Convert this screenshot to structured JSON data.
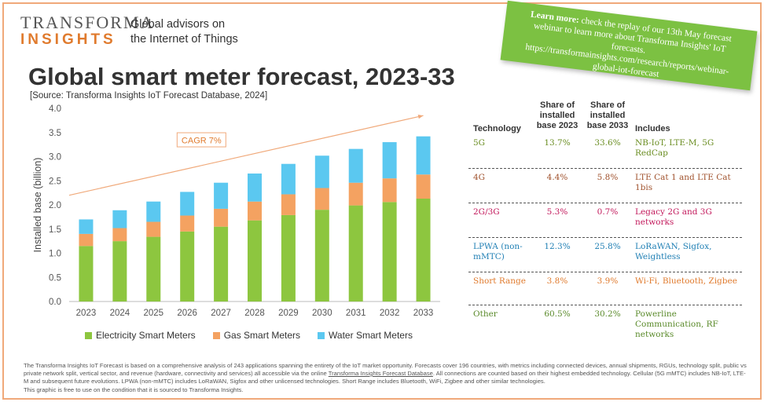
{
  "header": {
    "logo_top": "TRANSFORMA",
    "logo_bottom": "INSIGHTS",
    "tagline_line1": "Global advisors on",
    "tagline_line2": "the Internet of Things",
    "title": "Global smart meter forecast, 2023-33",
    "source": "[Source: Transforma Insights IoT Forecast Database, 2024]"
  },
  "sticker": {
    "bold": "Learn more:",
    "text": " check the replay of our 13th May forecast webinar to learn more about Transforma Insights' IoT forecasts. https://transformainsights.com/research/reports/webinar-global-iot-forecast"
  },
  "colors": {
    "electricity": "#8dc63f",
    "gas": "#f4a261",
    "water": "#5bc8f0",
    "cagr": "#f0a97a",
    "accent": "#e07b2e"
  },
  "chart_data": {
    "type": "bar",
    "stacked": true,
    "title": "",
    "ylabel": "Installed base (billion)",
    "xlabel": "",
    "ylim": [
      0,
      4.0
    ],
    "yticks": [
      "0.0",
      "0.5",
      "1.0",
      "1.5",
      "2.0",
      "2.5",
      "3.0",
      "3.5",
      "4.0"
    ],
    "categories": [
      "2023",
      "2024",
      "2025",
      "2026",
      "2027",
      "2028",
      "2029",
      "2030",
      "2031",
      "2032",
      "2033"
    ],
    "series": [
      {
        "name": "Electricity Smart Meters",
        "values": [
          1.15,
          1.25,
          1.34,
          1.45,
          1.55,
          1.68,
          1.79,
          1.9,
          1.99,
          2.06,
          2.13
        ]
      },
      {
        "name": "Gas Smart Meters",
        "values": [
          0.25,
          0.27,
          0.31,
          0.33,
          0.37,
          0.39,
          0.43,
          0.45,
          0.47,
          0.49,
          0.5
        ]
      },
      {
        "name": "Water Smart Meters",
        "values": [
          0.3,
          0.37,
          0.42,
          0.49,
          0.54,
          0.58,
          0.63,
          0.67,
          0.7,
          0.75,
          0.79
        ]
      }
    ],
    "annotation": {
      "label": "CAGR 7%",
      "trend_start": 2.2,
      "trend_end": 3.85
    },
    "legend_position": "bottom"
  },
  "table": {
    "headers": {
      "technology": "Technology",
      "share2023": "Share of installed base 2023",
      "share2033": "Share of installed base 2033",
      "includes": "Includes"
    },
    "rows": [
      {
        "tech": "5G",
        "s23": "13.7%",
        "s33": "33.6%",
        "includes": "NB-IoT, LTE-M, 5G RedCap",
        "color": "#6b8e23"
      },
      {
        "tech": "4G",
        "s23": "4.4%",
        "s33": "5.8%",
        "includes": "LTE Cat 1 and LTE Cat 1bis",
        "color": "#a0522d"
      },
      {
        "tech": "2G/3G",
        "s23": "5.3%",
        "s33": "0.7%",
        "includes": "Legacy 2G and 3G networks",
        "color": "#c2185b"
      },
      {
        "tech": "LPWA (non-mMTC)",
        "s23": "12.3%",
        "s33": "25.8%",
        "includes": "LoRaWAN, Sigfox, Weightless",
        "color": "#1f7fb4"
      },
      {
        "tech": "Short Range",
        "s23": "3.8%",
        "s33": "3.9%",
        "includes": "Wi-Fi, Bluetooth, Zigbee",
        "color": "#e07b2e"
      },
      {
        "tech": "Other",
        "s23": "60.5%",
        "s33": "30.2%",
        "includes": "Powerline Communication, RF networks",
        "color": "#5a8a2a"
      }
    ]
  },
  "footnote": {
    "p1a": "The Transforma Insights IoT Forecast is based on a comprehensive analysis of 243 applications spanning the entirety of the IoT market opportunity. Forecasts cover 196 countries, with metrics including connected devices, annual shipments, RGUs, technology split, public vs private network split, vertical sector, and revenue (hardware, connectivity and services) all accessible via the online ",
    "p1link": "Transforma Insights Forecast Database",
    "p1b": ". All connections are counted based on their highest embedded technology. Cellular (5G mMTC) includes NB-IoT, LTE-M and subsequent future evolutions. LPWA (non-mMTC) includes LoRaWAN, Sigfox and other unlicensed technologies. Short Range includes Bluetooth, WiFi, Zigbee and other similar technologies.",
    "p2": "This graphic is free to use on the condition that it is sourced to Transforma Insights."
  }
}
